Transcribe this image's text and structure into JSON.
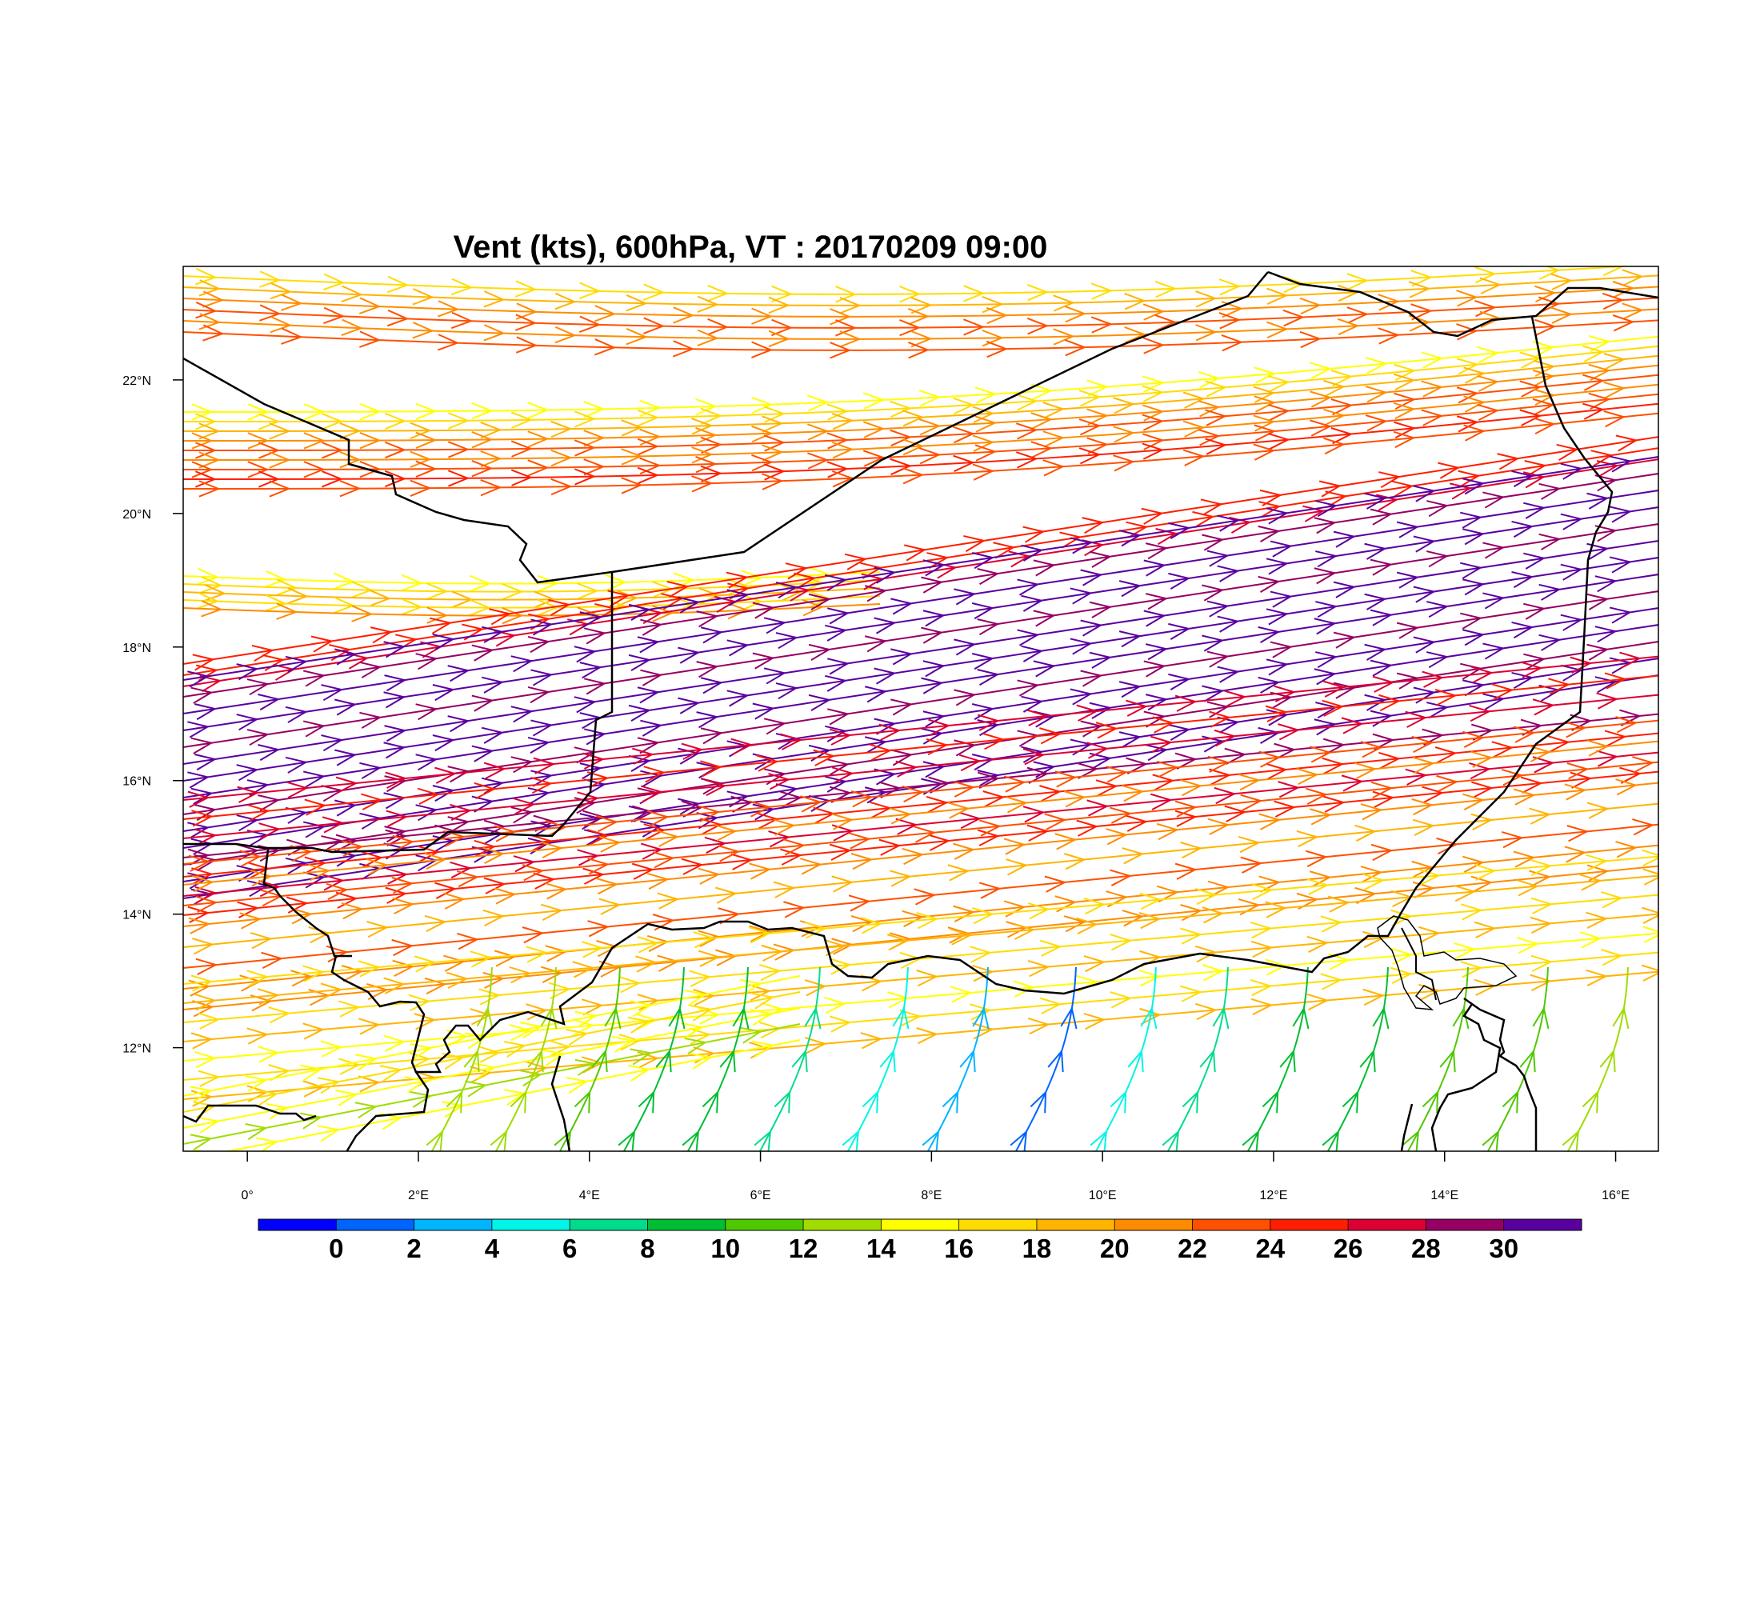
{
  "title": "Vent (kts), 600hPa, VT : 20170209  09:00",
  "map": {
    "lon_range": [
      -0.75,
      16.5
    ],
    "lat_range": [
      10.45,
      23.7
    ],
    "lon_ticks": [
      {
        "value": 0,
        "label": "0°"
      },
      {
        "value": 2,
        "label": "2°E"
      },
      {
        "value": 4,
        "label": "4°E"
      },
      {
        "value": 6,
        "label": "6°E"
      },
      {
        "value": 8,
        "label": "8°E"
      },
      {
        "value": 10,
        "label": "10°E"
      },
      {
        "value": 12,
        "label": "12°E"
      },
      {
        "value": 14,
        "label": "14°E"
      },
      {
        "value": 16,
        "label": "16°E"
      }
    ],
    "lat_ticks": [
      {
        "value": 12,
        "label": "12°N"
      },
      {
        "value": 14,
        "label": "14°N"
      },
      {
        "value": 16,
        "label": "16°N"
      },
      {
        "value": 18,
        "label": "18°N"
      },
      {
        "value": 20,
        "label": "20°N"
      },
      {
        "value": 22,
        "label": "22°N"
      }
    ],
    "border_color": "#000000"
  },
  "colorbar": {
    "colors": [
      "#0000ff",
      "#0064ff",
      "#00b4ff",
      "#00f5e6",
      "#00dc8c",
      "#00be32",
      "#50c800",
      "#a0dc00",
      "#ffff00",
      "#ffdc00",
      "#ffb400",
      "#ff8c00",
      "#ff5000",
      "#ff1e00",
      "#dc0032",
      "#960064",
      "#5a00a0"
    ],
    "labels": [
      "0",
      "2",
      "4",
      "6",
      "8",
      "10",
      "12",
      "14",
      "16",
      "18",
      "20",
      "22",
      "24",
      "26",
      "28",
      "30"
    ]
  }
}
